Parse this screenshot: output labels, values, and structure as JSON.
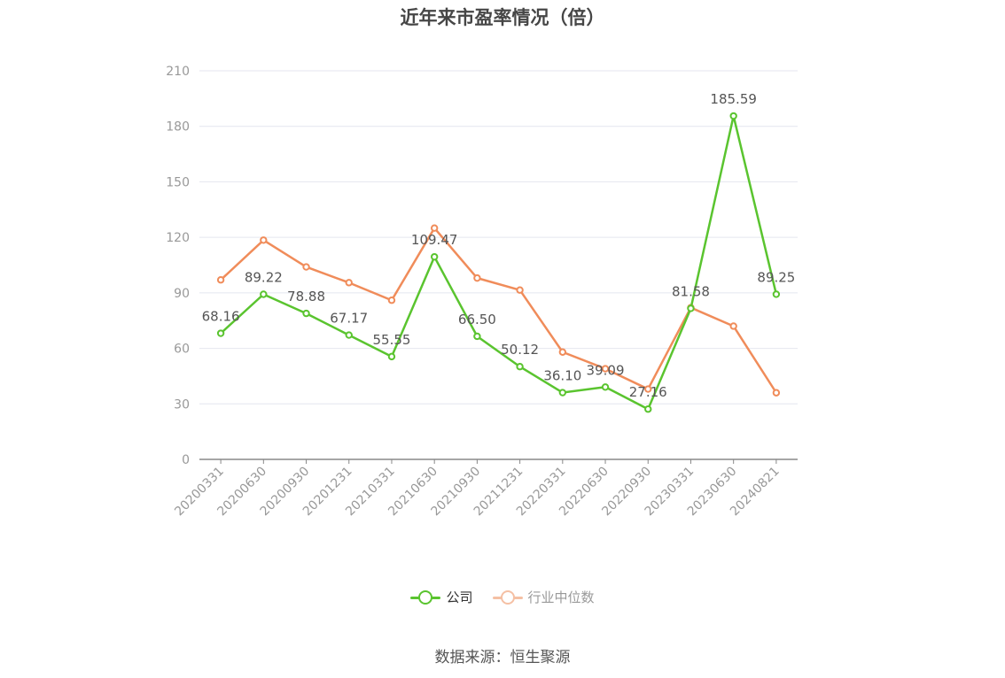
{
  "title": "近年来市盈率情况（倍）",
  "source_note": "数据来源：恒生聚源",
  "chart_data": {
    "type": "line",
    "title": "近年来市盈率情况（倍）",
    "x": [
      "20200331",
      "20200630",
      "20200930",
      "20201231",
      "20210331",
      "20210630",
      "20210930",
      "20211231",
      "20220331",
      "20220630",
      "20220930",
      "20230331",
      "20230630",
      "20240821"
    ],
    "y_ticks": [
      "0",
      "30",
      "60",
      "90",
      "120",
      "150",
      "180",
      "210"
    ],
    "ylim": [
      0,
      210
    ],
    "grid": true,
    "legend_position": "bottom",
    "series": [
      {
        "name": "公司",
        "color": "#5ac42f",
        "values": [
          68.16,
          89.22,
          78.88,
          67.17,
          55.55,
          109.47,
          66.5,
          50.12,
          36.1,
          39.09,
          27.16,
          81.58,
          185.59,
          89.25
        ],
        "labels": [
          "68.16",
          "89.22",
          "78.88",
          "67.17",
          "55.55",
          "109.47",
          "66.50",
          "50.12",
          "36.10",
          "39.09",
          "27.16",
          "81.58",
          "185.59",
          "89.25"
        ]
      },
      {
        "name": "行业中位数",
        "color": "#f08c5a",
        "values": [
          97,
          118.5,
          104,
          95.5,
          86,
          125,
          98,
          91.5,
          58,
          49,
          38,
          82,
          72,
          36
        ]
      }
    ]
  }
}
